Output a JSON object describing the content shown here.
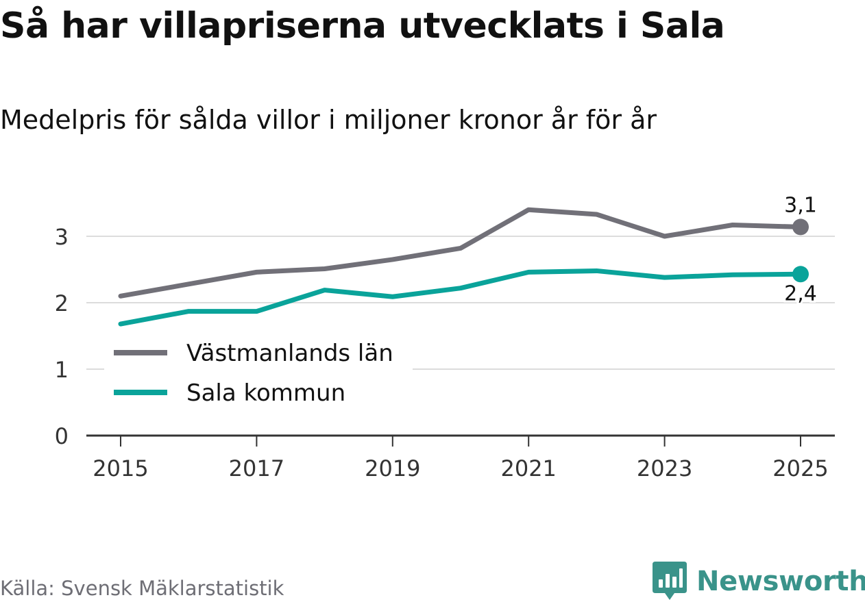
{
  "header": {
    "title": "Så har villapriserna utvecklats i Sala",
    "subtitle": "Medelpris för sålda villor i miljoner kronor år för år"
  },
  "footer": {
    "source": "Källa: Svensk Mäklarstatistik",
    "brand": "Newsworthy",
    "brand_icon": "bar-chart-icon"
  },
  "colors": {
    "lan": "#717078",
    "kommun": "#0aa39a",
    "grid": "#dcdcdc",
    "axis": "#333333",
    "brand": "#3a938a"
  },
  "chart_data": {
    "type": "line",
    "title": "Så har villapriserna utvecklats i Sala",
    "subtitle": "Medelpris för sålda villor i miljoner kronor år för år",
    "xlabel": "",
    "ylabel": "",
    "x": [
      2015,
      2016,
      2017,
      2018,
      2019,
      2020,
      2021,
      2022,
      2023,
      2024,
      2025
    ],
    "x_ticks": [
      2015,
      2017,
      2019,
      2021,
      2023,
      2025
    ],
    "x_tick_labels": [
      "2015",
      "2017",
      "2019",
      "2021",
      "2023",
      "2025"
    ],
    "y_ticks": [
      0,
      1,
      2,
      3
    ],
    "y_tick_labels": [
      "0",
      "1",
      "2",
      "3"
    ],
    "ylim": [
      0,
      3.5
    ],
    "xlim": [
      2014.5,
      2025.5
    ],
    "grid": true,
    "legend_position": "lower-left",
    "series": [
      {
        "name": "Västmanlands län",
        "color": "#717078",
        "values": [
          2.1,
          2.28,
          2.46,
          2.51,
          2.65,
          2.82,
          3.4,
          3.33,
          3.0,
          3.17,
          3.14
        ],
        "end_label": "3,1"
      },
      {
        "name": "Sala kommun",
        "color": "#0aa39a",
        "values": [
          1.68,
          1.87,
          1.87,
          2.19,
          2.09,
          2.22,
          2.46,
          2.48,
          2.38,
          2.42,
          2.43
        ],
        "end_label": "2,4"
      }
    ]
  }
}
